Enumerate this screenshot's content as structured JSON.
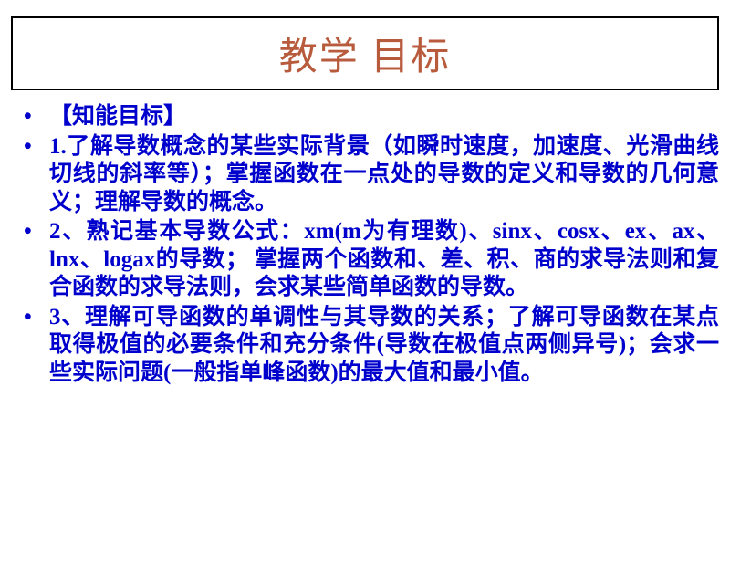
{
  "title": {
    "text": "教学 目标",
    "color": "#b85a3c"
  },
  "content": {
    "bullet_color": "#0000cd",
    "text_color": "#0000cd",
    "items": [
      "【知能目标】",
      "1.了解导数概念的某些实际背景（如瞬时速度，加速度、光滑曲线切线的斜率等）；掌握函数在一点处的导数的定义和导数的几何意义；理解导数的概念。",
      "2、熟记基本导数公式：xm(m为有理数)、sinx、cosx、ex、ax、lnx、logax的导数； 掌握两个函数和、差、积、商的求导法则和复合函数的求导法则，会求某些简单函数的导数。",
      "3、理解可导函数的单调性与其导数的关系；了解可导函数在某点取得极值的必要条件和充分条件(导数在极值点两侧异号)；会求一些实际问题(一般指单峰函数)的最大值和最小值。"
    ]
  }
}
